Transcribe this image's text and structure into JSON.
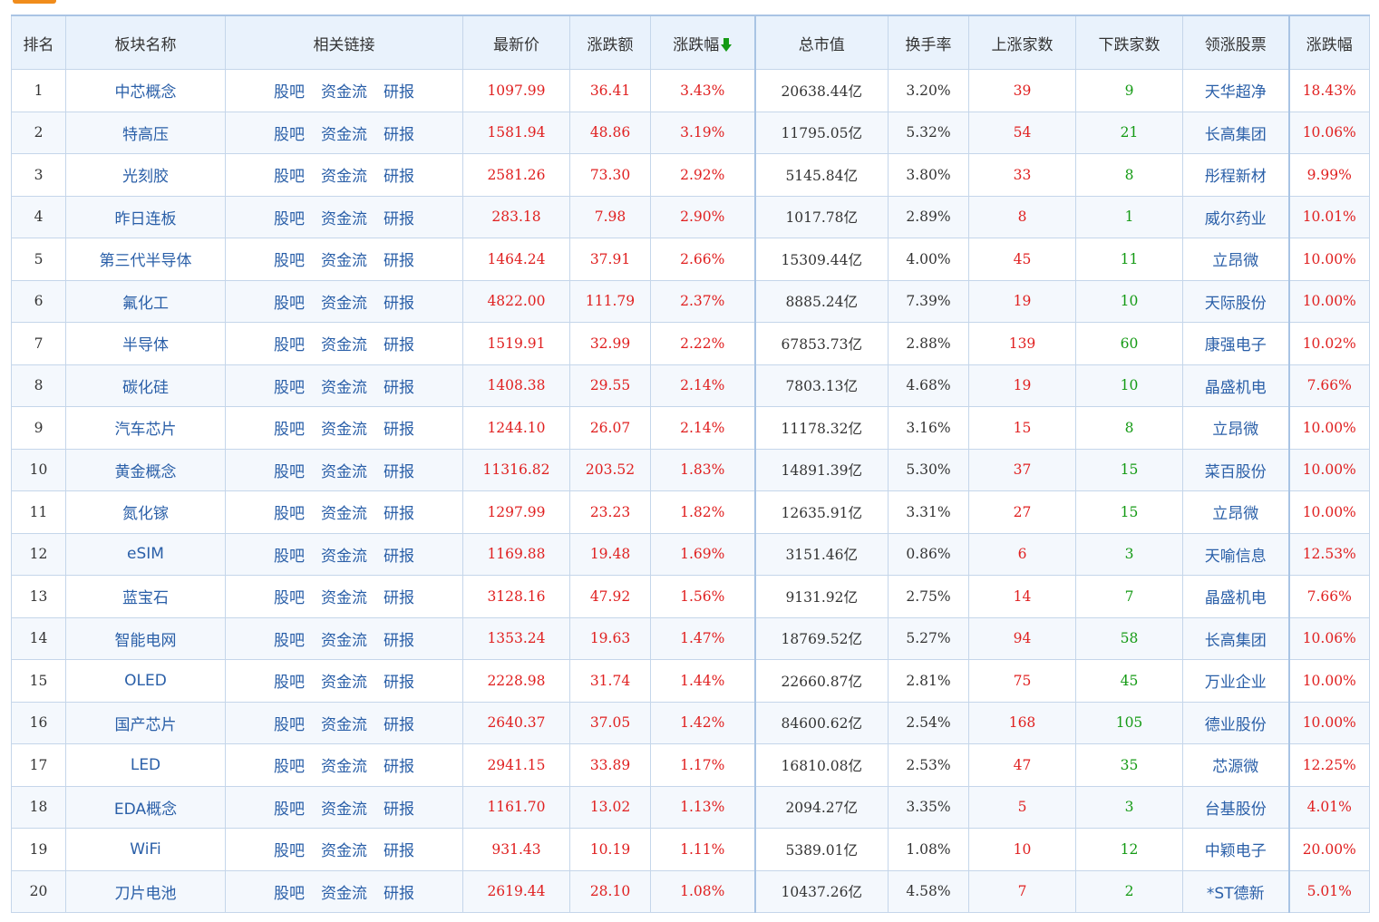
{
  "header": {
    "rank": "排名",
    "name": "板块名称",
    "links": "相关链接",
    "price": "最新价",
    "change": "涨跌额",
    "change_pct": "涨跌幅",
    "market_cap": "总市值",
    "turnover": "换手率",
    "up_count": "上涨家数",
    "down_count": "下跌家数",
    "leader": "领涨股票",
    "leader_pct": "涨跌幅"
  },
  "link_labels": [
    "股吧",
    "资金流",
    "研报"
  ],
  "colors": {
    "up": "#e02020",
    "down": "#149a14",
    "link": "#2a5fa8",
    "sort_arrow": "#149a14"
  },
  "rows": [
    {
      "rank": "1",
      "name": "中芯概念",
      "price": "1097.99",
      "change": "36.41",
      "change_pct": "3.43%",
      "cap": "20638.44",
      "cap_unit": "亿",
      "turnover": "3.20%",
      "up": "39",
      "down": "9",
      "leader": "天华超净",
      "leader_pct": "18.43%"
    },
    {
      "rank": "2",
      "name": "特高压",
      "price": "1581.94",
      "change": "48.86",
      "change_pct": "3.19%",
      "cap": "11795.05",
      "cap_unit": "亿",
      "turnover": "5.32%",
      "up": "54",
      "down": "21",
      "leader": "长高集团",
      "leader_pct": "10.06%"
    },
    {
      "rank": "3",
      "name": "光刻胶",
      "price": "2581.26",
      "change": "73.30",
      "change_pct": "2.92%",
      "cap": "5145.84",
      "cap_unit": "亿",
      "turnover": "3.80%",
      "up": "33",
      "down": "8",
      "leader": "彤程新材",
      "leader_pct": "9.99%"
    },
    {
      "rank": "4",
      "name": "昨日连板",
      "price": "283.18",
      "change": "7.98",
      "change_pct": "2.90%",
      "cap": "1017.78",
      "cap_unit": "亿",
      "turnover": "2.89%",
      "up": "8",
      "down": "1",
      "leader": "威尔药业",
      "leader_pct": "10.01%"
    },
    {
      "rank": "5",
      "name": "第三代半导体",
      "price": "1464.24",
      "change": "37.91",
      "change_pct": "2.66%",
      "cap": "15309.44",
      "cap_unit": "亿",
      "turnover": "4.00%",
      "up": "45",
      "down": "11",
      "leader": "立昂微",
      "leader_pct": "10.00%"
    },
    {
      "rank": "6",
      "name": "氟化工",
      "price": "4822.00",
      "change": "111.79",
      "change_pct": "2.37%",
      "cap": "8885.24",
      "cap_unit": "亿",
      "turnover": "7.39%",
      "up": "19",
      "down": "10",
      "leader": "天际股份",
      "leader_pct": "10.00%"
    },
    {
      "rank": "7",
      "name": "半导体",
      "price": "1519.91",
      "change": "32.99",
      "change_pct": "2.22%",
      "cap": "67853.73",
      "cap_unit": "亿",
      "turnover": "2.88%",
      "up": "139",
      "down": "60",
      "leader": "康强电子",
      "leader_pct": "10.02%"
    },
    {
      "rank": "8",
      "name": "碳化硅",
      "price": "1408.38",
      "change": "29.55",
      "change_pct": "2.14%",
      "cap": "7803.13",
      "cap_unit": "亿",
      "turnover": "4.68%",
      "up": "19",
      "down": "10",
      "leader": "晶盛机电",
      "leader_pct": "7.66%"
    },
    {
      "rank": "9",
      "name": "汽车芯片",
      "price": "1244.10",
      "change": "26.07",
      "change_pct": "2.14%",
      "cap": "11178.32",
      "cap_unit": "亿",
      "turnover": "3.16%",
      "up": "15",
      "down": "8",
      "leader": "立昂微",
      "leader_pct": "10.00%"
    },
    {
      "rank": "10",
      "name": "黄金概念",
      "price": "11316.82",
      "change": "203.52",
      "change_pct": "1.83%",
      "cap": "14891.39",
      "cap_unit": "亿",
      "turnover": "5.30%",
      "up": "37",
      "down": "15",
      "leader": "菜百股份",
      "leader_pct": "10.00%"
    },
    {
      "rank": "11",
      "name": "氮化镓",
      "price": "1297.99",
      "change": "23.23",
      "change_pct": "1.82%",
      "cap": "12635.91",
      "cap_unit": "亿",
      "turnover": "3.31%",
      "up": "27",
      "down": "15",
      "leader": "立昂微",
      "leader_pct": "10.00%"
    },
    {
      "rank": "12",
      "name": "eSIM",
      "price": "1169.88",
      "change": "19.48",
      "change_pct": "1.69%",
      "cap": "3151.46",
      "cap_unit": "亿",
      "turnover": "0.86%",
      "up": "6",
      "down": "3",
      "leader": "天喻信息",
      "leader_pct": "12.53%"
    },
    {
      "rank": "13",
      "name": "蓝宝石",
      "price": "3128.16",
      "change": "47.92",
      "change_pct": "1.56%",
      "cap": "9131.92",
      "cap_unit": "亿",
      "turnover": "2.75%",
      "up": "14",
      "down": "7",
      "leader": "晶盛机电",
      "leader_pct": "7.66%"
    },
    {
      "rank": "14",
      "name": "智能电网",
      "price": "1353.24",
      "change": "19.63",
      "change_pct": "1.47%",
      "cap": "18769.52",
      "cap_unit": "亿",
      "turnover": "5.27%",
      "up": "94",
      "down": "58",
      "leader": "长高集团",
      "leader_pct": "10.06%"
    },
    {
      "rank": "15",
      "name": "OLED",
      "price": "2228.98",
      "change": "31.74",
      "change_pct": "1.44%",
      "cap": "22660.87",
      "cap_unit": "亿",
      "turnover": "2.81%",
      "up": "75",
      "down": "45",
      "leader": "万业企业",
      "leader_pct": "10.00%"
    },
    {
      "rank": "16",
      "name": "国产芯片",
      "price": "2640.37",
      "change": "37.05",
      "change_pct": "1.42%",
      "cap": "84600.62",
      "cap_unit": "亿",
      "turnover": "2.54%",
      "up": "168",
      "down": "105",
      "leader": "德业股份",
      "leader_pct": "10.00%"
    },
    {
      "rank": "17",
      "name": "LED",
      "price": "2941.15",
      "change": "33.89",
      "change_pct": "1.17%",
      "cap": "16810.08",
      "cap_unit": "亿",
      "turnover": "2.53%",
      "up": "47",
      "down": "35",
      "leader": "芯源微",
      "leader_pct": "12.25%"
    },
    {
      "rank": "18",
      "name": "EDA概念",
      "price": "1161.70",
      "change": "13.02",
      "change_pct": "1.13%",
      "cap": "2094.27",
      "cap_unit": "亿",
      "turnover": "3.35%",
      "up": "5",
      "down": "3",
      "leader": "台基股份",
      "leader_pct": "4.01%"
    },
    {
      "rank": "19",
      "name": "WiFi",
      "price": "931.43",
      "change": "10.19",
      "change_pct": "1.11%",
      "cap": "5389.01",
      "cap_unit": "亿",
      "turnover": "1.08%",
      "up": "10",
      "down": "12",
      "leader": "中颖电子",
      "leader_pct": "20.00%"
    },
    {
      "rank": "20",
      "name": "刀片电池",
      "price": "2619.44",
      "change": "28.10",
      "change_pct": "1.08%",
      "cap": "10437.26",
      "cap_unit": "亿",
      "turnover": "4.58%",
      "up": "7",
      "down": "2",
      "leader": "*ST德新",
      "leader_pct": "5.01%"
    }
  ]
}
